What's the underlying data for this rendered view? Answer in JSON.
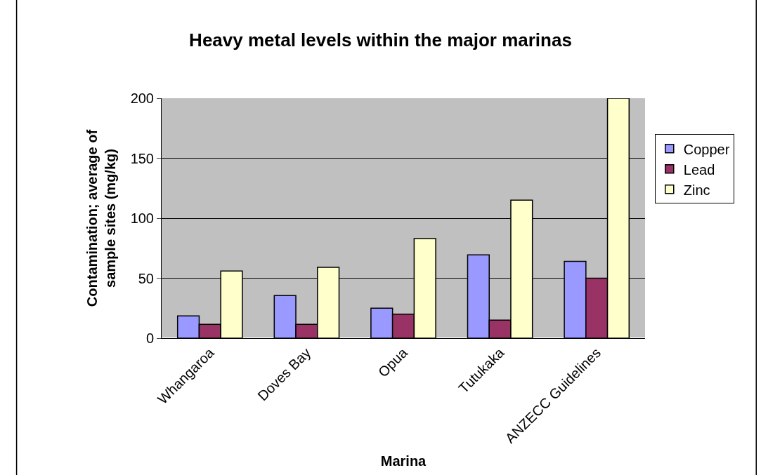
{
  "chart_data": {
    "type": "bar",
    "title": "Heavy metal levels within the major marinas",
    "xlabel": "Marina",
    "ylabel": "Contamination; average of sample sites (mg/kg)",
    "categories": [
      "Whangaroa",
      "Doves Bay",
      "Opua",
      "Tutukaka",
      "ANZECC Guidelines"
    ],
    "series": [
      {
        "name": "Copper",
        "color": "#9999ff",
        "values": [
          18.5,
          35.5,
          25,
          69.5,
          64
        ]
      },
      {
        "name": "Lead",
        "color": "#993366",
        "values": [
          11.5,
          11.5,
          20,
          15,
          50
        ]
      },
      {
        "name": "Zinc",
        "color": "#ffffcc",
        "values": [
          56,
          59,
          83,
          115,
          200
        ]
      }
    ],
    "ylim": [
      0,
      200
    ],
    "yticks": [
      0,
      50,
      100,
      150,
      200
    ],
    "grid": "y",
    "legend": "right"
  }
}
